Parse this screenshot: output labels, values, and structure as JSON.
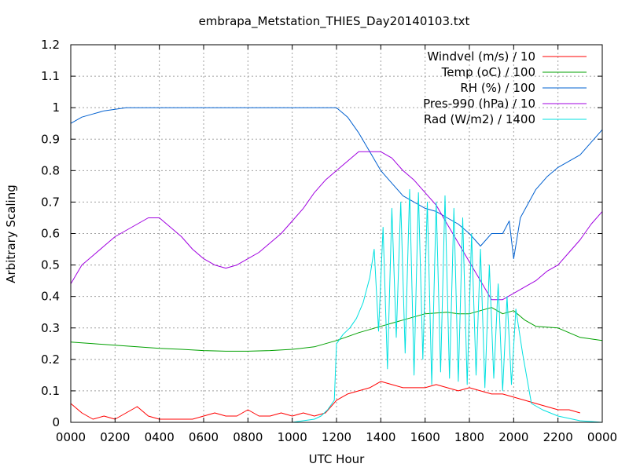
{
  "chart_data": {
    "type": "line",
    "title": "embrapa_Metstation_THIES_Day20140103.txt",
    "xlabel": "UTC Hour",
    "ylabel": "Arbitrary Scaling",
    "xlim": [
      0,
      24
    ],
    "ylim": [
      0,
      1.2
    ],
    "grid": true,
    "legend_position": "top-right",
    "x_tick_labels": [
      "0000",
      "0200",
      "0400",
      "0600",
      "0800",
      "1000",
      "1200",
      "1400",
      "1600",
      "1800",
      "2000",
      "2200",
      "0000"
    ],
    "y_tick_labels": [
      "0",
      "0.1",
      "0.2",
      "0.3",
      "0.4",
      "0.5",
      "0.6",
      "0.7",
      "0.8",
      "0.9",
      "1",
      "1.1",
      "1.2"
    ],
    "series": [
      {
        "name": "Windvel (m/s) / 10",
        "color": "#ff0000",
        "x": [
          0,
          0.5,
          1,
          1.5,
          2,
          2.5,
          3,
          3.5,
          4,
          4.5,
          5,
          5.5,
          6,
          6.5,
          7,
          7.5,
          8,
          8.5,
          9,
          9.5,
          10,
          10.5,
          11,
          11.5,
          12,
          12.5,
          13,
          13.5,
          14,
          14.5,
          15,
          15.5,
          16,
          16.5,
          17,
          17.5,
          18,
          18.5,
          19,
          19.5,
          20,
          20.5,
          21,
          21.5,
          22,
          22.5,
          23
        ],
        "y": [
          0.06,
          0.03,
          0.01,
          0.02,
          0.01,
          0.03,
          0.05,
          0.02,
          0.01,
          0.01,
          0.01,
          0.01,
          0.02,
          0.03,
          0.02,
          0.02,
          0.04,
          0.02,
          0.02,
          0.03,
          0.02,
          0.03,
          0.02,
          0.03,
          0.07,
          0.09,
          0.1,
          0.11,
          0.13,
          0.12,
          0.11,
          0.11,
          0.11,
          0.12,
          0.11,
          0.1,
          0.11,
          0.1,
          0.09,
          0.09,
          0.08,
          0.07,
          0.06,
          0.05,
          0.04,
          0.04,
          0.03
        ]
      },
      {
        "name": "Temp (oC) / 100",
        "color": "#00a000",
        "x": [
          0,
          1,
          2,
          3,
          4,
          5,
          6,
          7,
          8,
          9,
          10,
          11,
          12,
          13,
          14,
          15,
          16,
          17,
          17.5,
          18,
          18.5,
          19,
          19.5,
          20,
          20.5,
          21,
          22,
          23,
          24
        ],
        "y": [
          0.255,
          0.25,
          0.245,
          0.24,
          0.235,
          0.232,
          0.228,
          0.226,
          0.226,
          0.228,
          0.232,
          0.24,
          0.26,
          0.285,
          0.305,
          0.325,
          0.345,
          0.35,
          0.345,
          0.345,
          0.355,
          0.365,
          0.345,
          0.355,
          0.325,
          0.305,
          0.3,
          0.27,
          0.26
        ]
      },
      {
        "name": "RH (%) / 100",
        "color": "#0060d0",
        "x": [
          0,
          0.5,
          1,
          1.5,
          2,
          2.5,
          3,
          4,
          5,
          6,
          7,
          8,
          9,
          10,
          11,
          11.5,
          12,
          12.5,
          13,
          13.5,
          14,
          14.5,
          15,
          15.5,
          16,
          16.5,
          17,
          17.5,
          18,
          18.5,
          19,
          19.5,
          19.8,
          20,
          20.3,
          21,
          21.5,
          22,
          23,
          24
        ],
        "y": [
          0.95,
          0.97,
          0.98,
          0.99,
          0.995,
          1,
          1,
          1,
          1,
          1,
          1,
          1,
          1,
          1,
          1,
          1,
          1,
          0.97,
          0.92,
          0.86,
          0.8,
          0.76,
          0.72,
          0.7,
          0.68,
          0.67,
          0.65,
          0.63,
          0.6,
          0.56,
          0.6,
          0.6,
          0.64,
          0.52,
          0.65,
          0.74,
          0.78,
          0.81,
          0.85,
          0.93
        ]
      },
      {
        "name": "Pres-990 (hPa) / 10",
        "color": "#a000e0",
        "x": [
          0,
          0.5,
          1,
          1.5,
          2,
          2.5,
          3,
          3.5,
          4,
          4.5,
          5,
          5.5,
          6,
          6.5,
          7,
          7.5,
          8,
          8.5,
          9,
          9.5,
          10,
          10.5,
          11,
          11.5,
          12,
          12.5,
          13,
          13.5,
          14,
          14.5,
          15,
          15.5,
          16,
          16.5,
          17,
          17.5,
          18,
          18.5,
          19,
          19.5,
          20,
          20.5,
          21,
          21.5,
          22,
          22.5,
          23,
          23.5,
          24
        ],
        "y": [
          0.44,
          0.5,
          0.53,
          0.56,
          0.59,
          0.61,
          0.63,
          0.65,
          0.65,
          0.62,
          0.59,
          0.55,
          0.52,
          0.5,
          0.49,
          0.5,
          0.52,
          0.54,
          0.57,
          0.6,
          0.64,
          0.68,
          0.73,
          0.77,
          0.8,
          0.83,
          0.86,
          0.86,
          0.86,
          0.84,
          0.8,
          0.77,
          0.73,
          0.69,
          0.63,
          0.57,
          0.51,
          0.45,
          0.39,
          0.39,
          0.41,
          0.43,
          0.45,
          0.48,
          0.5,
          0.54,
          0.58,
          0.63,
          0.67
        ]
      },
      {
        "name": "Rad (W/m2) / 1400",
        "color": "#00e0e0",
        "x": [
          0,
          10,
          11,
          11.3,
          11.6,
          11.9,
          12,
          12.3,
          12.6,
          12.9,
          13.2,
          13.5,
          13.7,
          13.9,
          14.1,
          14.3,
          14.5,
          14.7,
          14.9,
          15.1,
          15.3,
          15.5,
          15.7,
          15.9,
          16.1,
          16.3,
          16.5,
          16.7,
          16.9,
          17.1,
          17.3,
          17.5,
          17.7,
          17.9,
          18.1,
          18.3,
          18.5,
          18.7,
          18.9,
          19.1,
          19.3,
          19.5,
          19.7,
          19.9,
          20.1,
          20.4,
          20.8,
          21.3,
          22,
          23,
          24
        ],
        "y": [
          0,
          0,
          0.01,
          0.02,
          0.04,
          0.07,
          0.25,
          0.28,
          0.3,
          0.33,
          0.38,
          0.46,
          0.55,
          0.29,
          0.62,
          0.17,
          0.68,
          0.27,
          0.7,
          0.22,
          0.74,
          0.15,
          0.73,
          0.2,
          0.7,
          0.12,
          0.7,
          0.16,
          0.72,
          0.14,
          0.68,
          0.13,
          0.65,
          0.12,
          0.6,
          0.15,
          0.55,
          0.11,
          0.5,
          0.14,
          0.44,
          0.1,
          0.4,
          0.12,
          0.36,
          0.22,
          0.06,
          0.04,
          0.02,
          0.005,
          0
        ]
      }
    ]
  }
}
